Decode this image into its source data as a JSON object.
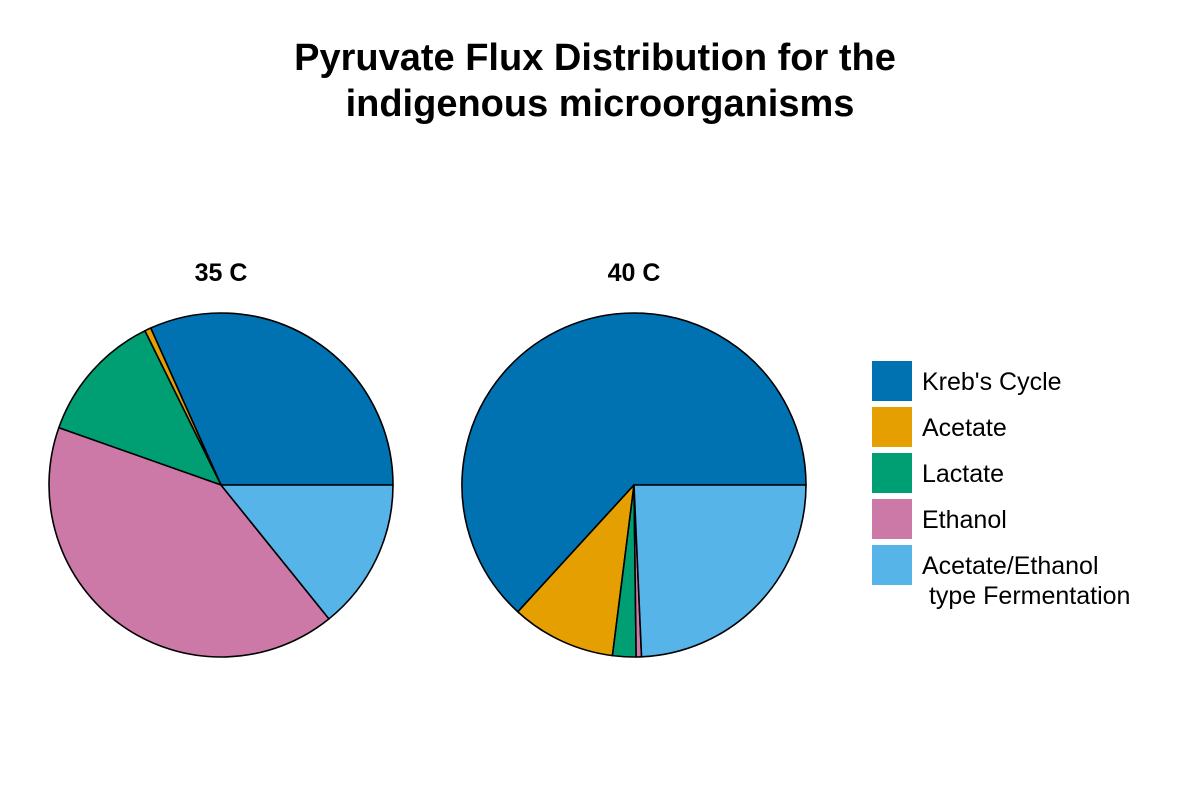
{
  "chart_data": {
    "type": "pie",
    "title_lines": [
      "Pyruvate Flux Distribution for the",
      "indigenous microorganisms"
    ],
    "categories": [
      "Kreb's Cycle",
      "Acetate",
      "Lactate",
      "Ethanol",
      "Acetate/Ethanol type Fermentation"
    ],
    "legend_lines": [
      [
        "Kreb's Cycle"
      ],
      [
        "Acetate"
      ],
      [
        "Lactate"
      ],
      [
        "Ethanol"
      ],
      [
        "Acetate/Ethanol",
        " type Fermentation"
      ]
    ],
    "colors": [
      "#0072B2",
      "#E69F00",
      "#009E73",
      "#CC79A7",
      "#56B4E9"
    ],
    "legend_position": "right",
    "pies": [
      {
        "name": "35 C",
        "values": [
          31.7,
          0.6,
          12.3,
          41.2,
          14.2
        ]
      },
      {
        "name": "40 C",
        "values": [
          63.2,
          9.8,
          2.2,
          0.5,
          24.3
        ]
      }
    ]
  }
}
